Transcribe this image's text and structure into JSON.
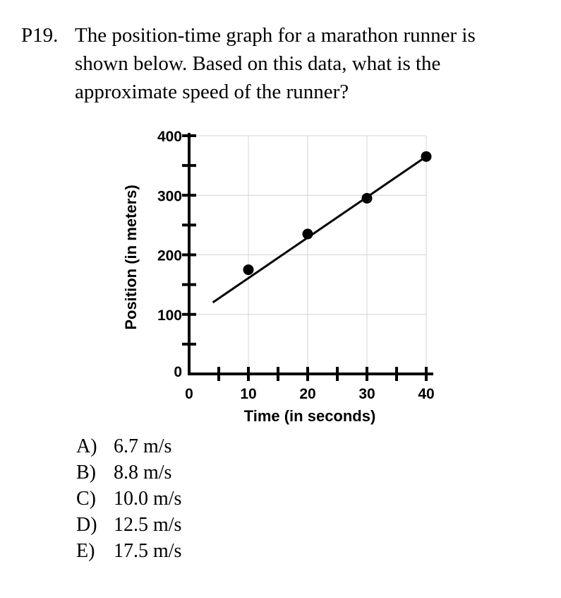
{
  "question": {
    "number": "P19.",
    "lines": [
      "The position-time graph for a marathon runner is",
      "shown below.  Based on this data, what is the",
      "approximate speed of the runner?"
    ]
  },
  "chart_data": {
    "type": "scatter",
    "title": "",
    "xlabel": "Time (in seconds)",
    "ylabel": "Position (in meters)",
    "xlim": [
      0,
      40
    ],
    "ylim": [
      0,
      400
    ],
    "x_ticks": [
      0,
      10,
      20,
      30,
      40
    ],
    "y_ticks": [
      0,
      100,
      200,
      300,
      400
    ],
    "x_minor_step": 5,
    "y_minor_step": 50,
    "grid": true,
    "legend": "none",
    "series": [
      {
        "points": [
          {
            "x": 10,
            "y": 175
          },
          {
            "x": 20,
            "y": 235
          },
          {
            "x": 30,
            "y": 295
          },
          {
            "x": 40,
            "y": 365
          }
        ]
      }
    ],
    "trendline": {
      "x_start": 4,
      "y_start": 120,
      "x_end": 40,
      "y_end": 365
    },
    "colors": {
      "points": "#000000",
      "line": "#000000",
      "grid": "#d4d4d4",
      "axes": "#000000"
    }
  },
  "choices": [
    {
      "letter": "A)",
      "text": "6.7 m/s"
    },
    {
      "letter": "B)",
      "text": "8.8 m/s"
    },
    {
      "letter": "C)",
      "text": "10.0 m/s"
    },
    {
      "letter": "D)",
      "text": "12.5 m/s"
    },
    {
      "letter": "E)",
      "text": "17.5 m/s"
    }
  ]
}
